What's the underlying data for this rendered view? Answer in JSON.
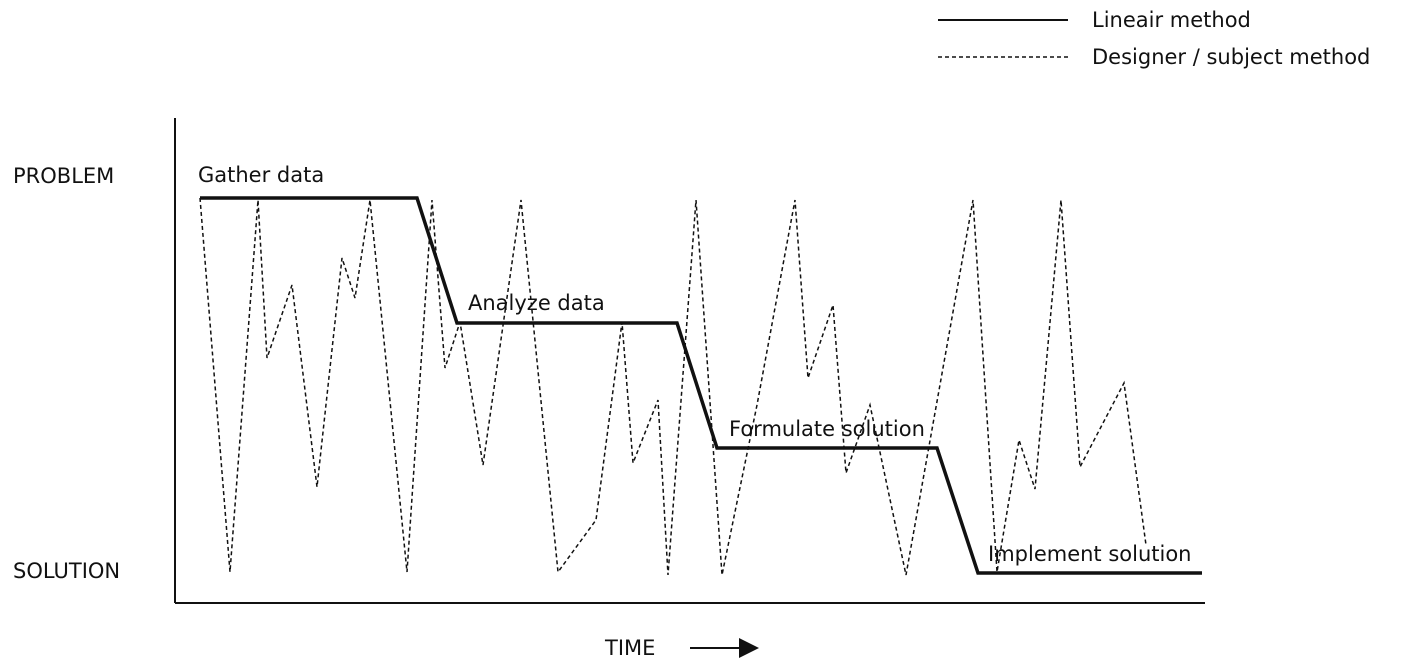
{
  "legend": {
    "solid_label": "Lineair method",
    "dashed_label": "Designer / subject method"
  },
  "axes": {
    "y_top_label": "PROBLEM",
    "y_bottom_label": "SOLUTION",
    "x_label": "TIME"
  },
  "phases": [
    "Gather data",
    "Analyze data",
    "Formulate solution",
    "Implement solution"
  ],
  "colors": {
    "ink": "#111111",
    "background": "#ffffff"
  }
}
